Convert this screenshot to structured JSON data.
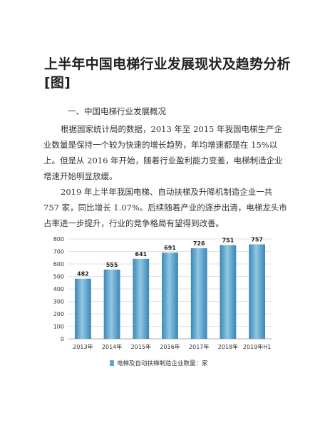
{
  "article": {
    "title": "上半年中国电梯行业发展现状及趋势分析[图]",
    "section_heading": "一、中国电梯行业发展概况",
    "paragraph_1": "根据国家统计局的数据，2013 年至 2015 年我国电梯生产企业数量是保持一个较为快速的增长趋势，年均增速都是在 15%以上。但是从 2016 年开始，随着行业盈利能力变差，电梯制造企业增速开始明显放缓。",
    "paragraph_2": "2019 年上半年我国电梯、自动扶梯及升降机制造企业一共 757 家，同比增长 1.07%。后续随着产业的逐步出清，电梯龙头市占率进一步提升，行业的竞争格局有望得到改善。"
  },
  "chart_data": {
    "type": "bar",
    "categories": [
      "2013年",
      "2014年",
      "2015年",
      "2016年",
      "2017年",
      "2018年",
      "2019年H1"
    ],
    "series": [
      {
        "name": "电梯及自动扶梯制造企业数量：家",
        "values": [
          482,
          555,
          641,
          691,
          726,
          751,
          757
        ]
      }
    ],
    "ylim": [
      0,
      800
    ],
    "yticks": [
      0,
      100,
      200,
      300,
      400,
      500,
      600,
      700,
      800
    ],
    "grid": true,
    "legend": "bottom",
    "bar_color": "#5aa9cf",
    "bar_gradient_dark": "#3b86b4",
    "bar_gradient_light": "#8fc8e4"
  }
}
